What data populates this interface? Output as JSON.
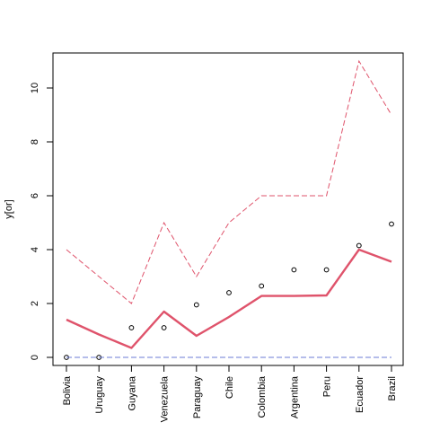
{
  "chart_data": {
    "type": "line",
    "title": "",
    "xlabel": "",
    "ylabel": "y[or]",
    "categories": [
      "Bolivia",
      "Uruguay",
      "Guyana",
      "Venezuela",
      "Paraguay",
      "Chile",
      "Colombia",
      "Argentina",
      "Peru",
      "Ecuador",
      "Brazil"
    ],
    "ylim": [
      -0.3,
      11.3
    ],
    "yticks": [
      0,
      2,
      4,
      6,
      8,
      10
    ],
    "grid": false,
    "legend": "none",
    "series": [
      {
        "style": "points",
        "color": "#000000",
        "values": [
          0,
          0,
          1.1,
          1.1,
          1.95,
          2.4,
          2.65,
          3.25,
          3.25,
          4.15,
          4.95
        ]
      },
      {
        "style": "line",
        "color": "#DF536B",
        "values": [
          1.4,
          0.85,
          0.35,
          1.7,
          0.8,
          1.5,
          2.28,
          2.28,
          2.3,
          4.0,
          3.55
        ]
      },
      {
        "style": "dashed",
        "color": "#DF536B",
        "values": [
          4,
          3,
          2,
          5,
          3,
          5,
          6,
          6,
          6,
          11,
          9
        ]
      },
      {
        "style": "dashed",
        "color": "#6B7BD6",
        "values": [
          0,
          0,
          0,
          0,
          0,
          0,
          0,
          0,
          0,
          0,
          0
        ]
      }
    ]
  }
}
